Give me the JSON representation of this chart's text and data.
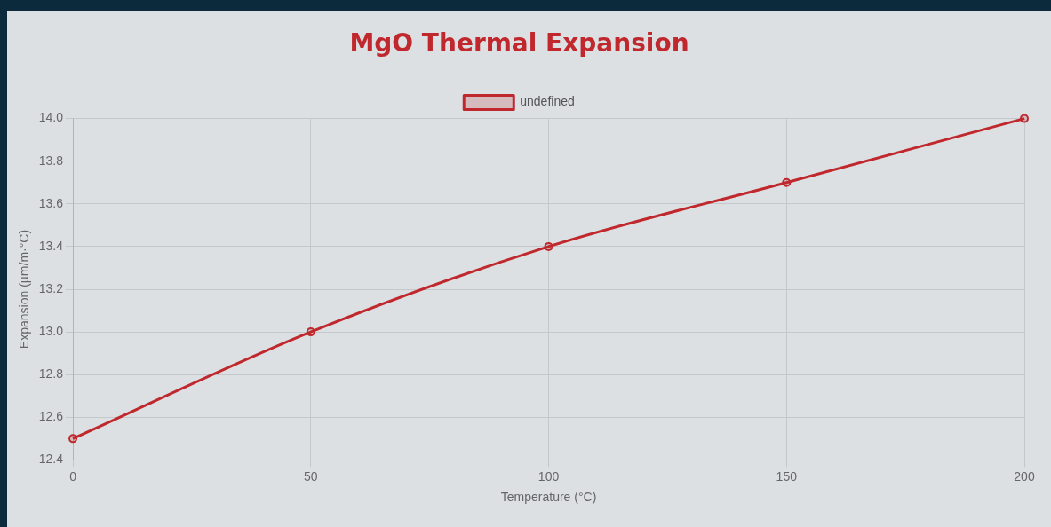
{
  "chart_data": {
    "type": "line",
    "title": "MgO Thermal Expansion",
    "xlabel": "Temperature (°C)",
    "ylabel": "Expansion (µm/m·°C)",
    "x": [
      0,
      50,
      100,
      150,
      200
    ],
    "series": [
      {
        "name": "undefined",
        "color": "#c0282d",
        "values": [
          12.5,
          13.0,
          13.4,
          13.7,
          14.0
        ]
      }
    ],
    "xlim": [
      0,
      200
    ],
    "xticks": [
      0,
      50,
      100,
      150,
      200
    ],
    "ylim": [
      12.4,
      14.0
    ],
    "yticks": [
      {
        "value": 12.4,
        "label": "12.4"
      },
      {
        "value": 12.6,
        "label": "12.6"
      },
      {
        "value": 12.8,
        "label": "12.8"
      },
      {
        "value": 13.0,
        "label": "13.0"
      },
      {
        "value": 13.2,
        "label": "13.2"
      },
      {
        "value": 13.4,
        "label": "13.4"
      },
      {
        "value": 13.6,
        "label": "13.6"
      },
      {
        "value": 13.8,
        "label": "13.8"
      },
      {
        "value": 14.0,
        "label": "14.0"
      }
    ],
    "grid": true,
    "legend": "top",
    "marker": "circle",
    "line_style": "solid"
  }
}
